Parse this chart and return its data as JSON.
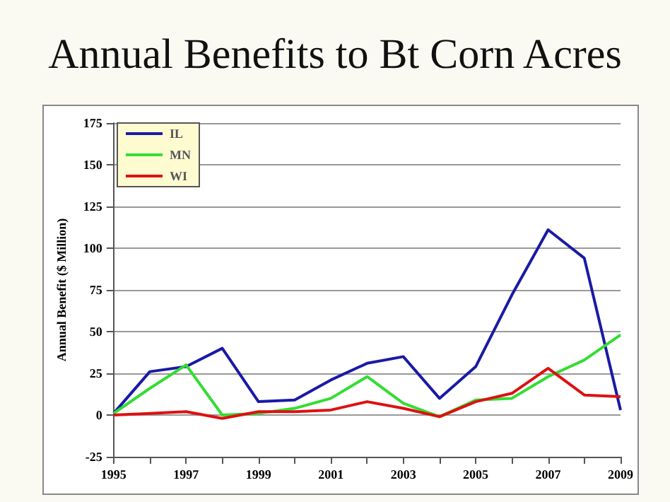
{
  "chart_data": {
    "type": "line",
    "title": "Annual Benefits to Bt Corn Acres",
    "ylabel": "Annual Benefit ($ Million)",
    "x": [
      1995,
      1996,
      1997,
      1998,
      1999,
      2000,
      2001,
      2002,
      2003,
      2004,
      2005,
      2006,
      2007,
      2008,
      2009
    ],
    "series": [
      {
        "name": "IL",
        "color": "#1a1aa6",
        "values": [
          1,
          26,
          29,
          40,
          8,
          9,
          21,
          31,
          35,
          10,
          29,
          72,
          111,
          94,
          3
        ]
      },
      {
        "name": "MN",
        "color": "#33dd33",
        "values": [
          1,
          16,
          30,
          0,
          1,
          4,
          10,
          23,
          7,
          -1,
          9,
          10,
          23,
          33,
          48
        ]
      },
      {
        "name": "WI",
        "color": "#dd1111",
        "values": [
          0,
          1,
          2,
          -2,
          2,
          2,
          3,
          8,
          4,
          -1,
          8,
          13,
          28,
          12,
          11
        ]
      }
    ],
    "xlim": [
      1995,
      2009
    ],
    "xticks": [
      1995,
      {
        "value": 1996,
        "label": null
      },
      1997,
      {
        "value": 1998,
        "label": null
      },
      1999,
      {
        "value": 2000,
        "label": null
      },
      2001,
      {
        "value": 2002,
        "label": null
      },
      2003,
      {
        "value": 2004,
        "label": null
      },
      2005,
      {
        "value": 2006,
        "label": null
      },
      2007,
      {
        "value": 2008,
        "label": null
      },
      2009
    ],
    "ylim": [
      -25,
      175
    ],
    "yticks": [
      -25,
      0,
      25,
      50,
      75,
      100,
      125,
      150,
      175
    ],
    "grid": "y",
    "legend": "top left",
    "marker": "none",
    "line_style": "solid"
  }
}
